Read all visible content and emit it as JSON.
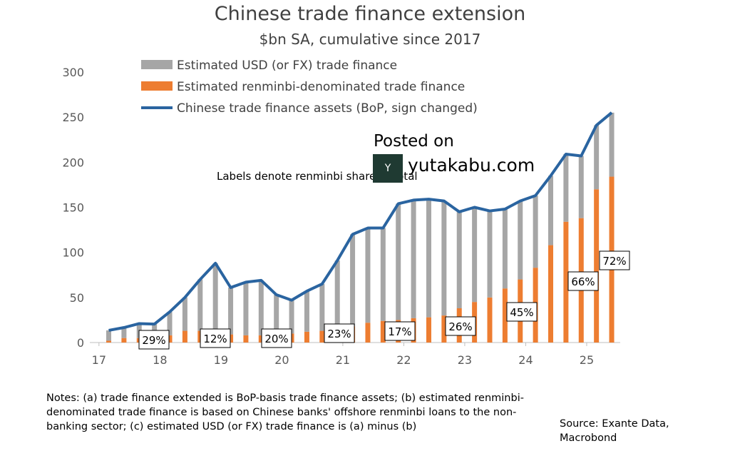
{
  "chart_data": {
    "type": "bar",
    "title": "Chinese trade finance extension",
    "subtitle": "$bn SA, cumulative since 2017",
    "x": [
      17.16,
      17.41,
      17.66,
      17.91,
      18.16,
      18.41,
      18.66,
      18.91,
      19.16,
      19.41,
      19.66,
      19.91,
      20.16,
      20.41,
      20.66,
      20.91,
      21.16,
      21.41,
      21.66,
      21.91,
      22.16,
      22.41,
      22.66,
      22.91,
      23.16,
      23.41,
      23.66,
      23.91,
      24.16,
      24.41,
      24.66,
      24.91,
      25.16,
      25.41
    ],
    "series": [
      {
        "name": "Estimated USD (or FX) trade finance",
        "type": "bar",
        "color": "#a6a6a6",
        "values": [
          11.5,
          11.6,
          16,
          14.5,
          26,
          37,
          57,
          76,
          52,
          59,
          61,
          44,
          37,
          45,
          52,
          76,
          102,
          105,
          103,
          129,
          131,
          131,
          127,
          107,
          105,
          96,
          88,
          87,
          80,
          77,
          75,
          69,
          71,
          71
        ]
      },
      {
        "name": "Estimated renminbi-denominated trade finance",
        "type": "bar",
        "color": "#ed7d31",
        "values": [
          2,
          5,
          5,
          6,
          8,
          13,
          13,
          12,
          9,
          8,
          8,
          9,
          10,
          12,
          13,
          15,
          18,
          22,
          24,
          25,
          27,
          28,
          30,
          38,
          45,
          50,
          60,
          70,
          83,
          108,
          134,
          138,
          170,
          184
        ]
      },
      {
        "name": "Chinese trade finance assets (BoP, sign changed)",
        "type": "line",
        "color": "#2a64a0",
        "values": [
          13.5,
          16.6,
          21,
          20.5,
          34,
          50,
          70,
          88,
          61,
          67,
          69,
          53,
          47,
          57,
          65,
          91,
          120,
          127,
          127,
          154,
          158,
          159,
          157,
          145,
          150,
          146,
          148,
          157,
          163,
          185,
          209,
          207,
          241,
          255
        ]
      }
    ],
    "xlim": [
      16.85,
      25.55
    ],
    "xticks": [
      17,
      18,
      19,
      20,
      21,
      22,
      23,
      24,
      25
    ],
    "ylim": [
      0,
      300
    ],
    "yticks": [
      0,
      50,
      100,
      150,
      200,
      250,
      300
    ],
    "annotation": "Labels denote renminbi share of total",
    "share_labels": [
      "29%",
      "12%",
      "20%",
      "23%",
      "17%",
      "26%",
      "45%",
      "66%",
      "72%"
    ],
    "watermark": {
      "line1": "Posted on",
      "line2": "yutakabu.com"
    },
    "notes": "Notes: (a) trade finance extended is BoP-basis trade finance assets; (b) estimated renminbi-denominated trade finance is based on Chinese banks' offshore renminbi loans to the non-banking sector; (c) estimated USD (or FX) trade finance is (a) minus (b)",
    "source": "Source: Exante Data, Macrobond"
  }
}
